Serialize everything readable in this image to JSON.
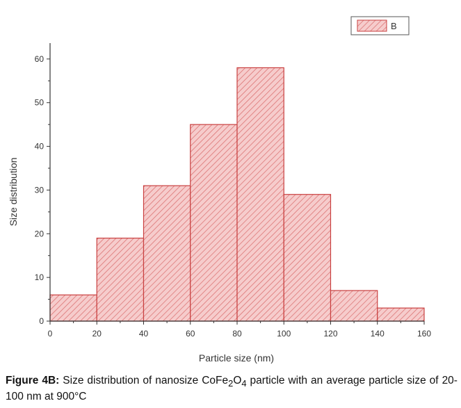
{
  "chart_data": {
    "type": "bar",
    "subtype": "histogram",
    "bins": [
      [
        0,
        20
      ],
      [
        20,
        40
      ],
      [
        40,
        60
      ],
      [
        60,
        80
      ],
      [
        80,
        100
      ],
      [
        100,
        120
      ],
      [
        120,
        140
      ],
      [
        140,
        160
      ]
    ],
    "values": [
      6,
      19,
      31,
      45,
      58,
      29,
      7,
      3
    ],
    "series": [
      {
        "name": "B",
        "values": [
          6,
          19,
          31,
          45,
          58,
          29,
          7,
          3
        ]
      }
    ],
    "xlabel": "Particle size (nm)",
    "ylabel": "Size distribution",
    "xlim": [
      0,
      160
    ],
    "ylim": [
      0,
      63
    ],
    "xticks": [
      "0",
      "20",
      "40",
      "60",
      "80",
      "100",
      "120",
      "140",
      "160"
    ],
    "yticks": [
      "0",
      "10",
      "20",
      "30",
      "40",
      "50",
      "60"
    ],
    "legend": {
      "position": "top-right",
      "entries": [
        "B"
      ]
    },
    "grid": false,
    "fill_color": "#f2b8b8",
    "hatch_color": "#d45a5a",
    "edge_color": "#c94040"
  },
  "caption": {
    "label": "Figure 4B:",
    "text_before_sub": " Size distribution of nanosize CoFe",
    "sub1": "2",
    "mid": "O",
    "sub2": "4",
    "text_after": " particle with an average particle size of 20-100 nm at 900°C"
  }
}
